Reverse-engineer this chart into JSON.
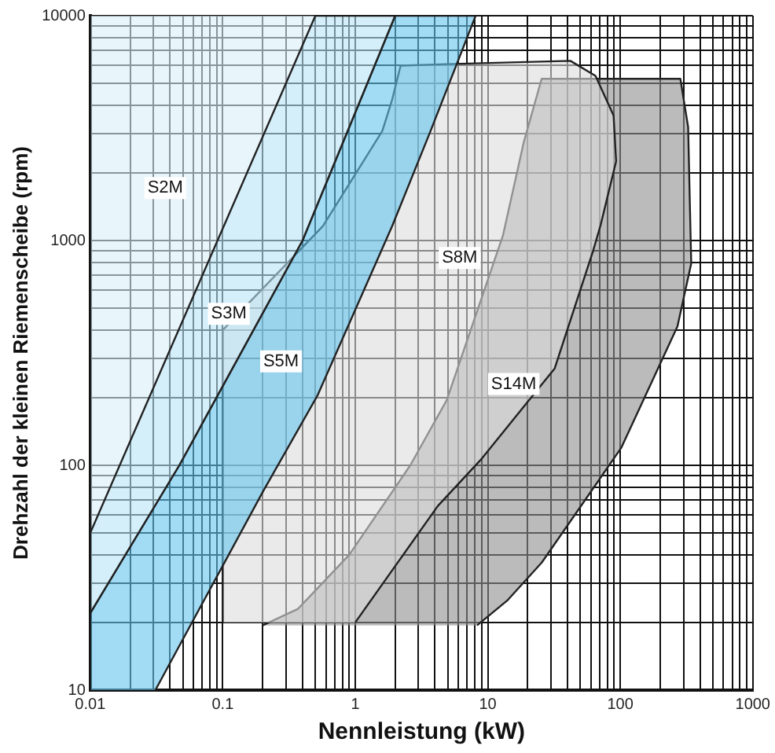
{
  "chart_data": {
    "type": "area",
    "xlabel": "Nennleistung (kW)",
    "ylabel": "Drehzahl der kleinen Riemenscheibe (rpm)",
    "log": "xy",
    "grid": true,
    "legend": false,
    "marker": "none",
    "xlim": [
      0.01,
      1000
    ],
    "ylim": [
      10,
      10000
    ],
    "xticks": [
      0.01,
      {
        "value": 0.02,
        "label": null
      },
      {
        "value": 0.03,
        "label": null
      },
      {
        "value": 0.04,
        "label": null
      },
      {
        "value": 0.05,
        "label": null
      },
      {
        "value": 0.06,
        "label": null
      },
      {
        "value": 0.07,
        "label": null
      },
      {
        "value": 0.08,
        "label": null
      },
      {
        "value": 0.09,
        "label": null
      },
      0.1,
      {
        "value": 0.2,
        "label": null
      },
      {
        "value": 0.3,
        "label": null
      },
      {
        "value": 0.4,
        "label": null
      },
      {
        "value": 0.5,
        "label": null
      },
      {
        "value": 0.6,
        "label": null
      },
      {
        "value": 0.7,
        "label": null
      },
      {
        "value": 0.8,
        "label": null
      },
      {
        "value": 0.9,
        "label": null
      },
      1,
      {
        "value": 2,
        "label": null
      },
      {
        "value": 3,
        "label": null
      },
      {
        "value": 4,
        "label": null
      },
      {
        "value": 5,
        "label": null
      },
      {
        "value": 6,
        "label": null
      },
      {
        "value": 7,
        "label": null
      },
      {
        "value": 8,
        "label": null
      },
      {
        "value": 9,
        "label": null
      },
      10,
      {
        "value": 20,
        "label": null
      },
      {
        "value": 30,
        "label": null
      },
      {
        "value": 40,
        "label": null
      },
      {
        "value": 50,
        "label": null
      },
      {
        "value": 60,
        "label": null
      },
      {
        "value": 70,
        "label": null
      },
      {
        "value": 80,
        "label": null
      },
      {
        "value": 90,
        "label": null
      },
      100,
      {
        "value": 200,
        "label": null
      },
      {
        "value": 300,
        "label": null
      },
      {
        "value": 400,
        "label": null
      },
      {
        "value": 500,
        "label": null
      },
      {
        "value": 600,
        "label": null
      },
      {
        "value": 700,
        "label": null
      },
      {
        "value": 800,
        "label": null
      },
      {
        "value": 900,
        "label": null
      },
      1000
    ],
    "yticks": [
      10,
      {
        "value": 20,
        "label": null
      },
      {
        "value": 30,
        "label": null
      },
      {
        "value": 40,
        "label": null
      },
      {
        "value": 50,
        "label": null
      },
      {
        "value": 60,
        "label": null
      },
      {
        "value": 70,
        "label": null
      },
      {
        "value": 80,
        "label": null
      },
      {
        "value": 90,
        "label": null
      },
      100,
      {
        "value": 200,
        "label": null
      },
      {
        "value": 300,
        "label": null
      },
      {
        "value": 400,
        "label": null
      },
      {
        "value": 500,
        "label": null
      },
      {
        "value": 600,
        "label": null
      },
      {
        "value": 700,
        "label": null
      },
      {
        "value": 800,
        "label": null
      },
      {
        "value": 900,
        "label": null
      },
      1000,
      {
        "value": 2000,
        "label": null
      },
      {
        "value": 3000,
        "label": null
      },
      {
        "value": 4000,
        "label": null
      },
      {
        "value": 5000,
        "label": null
      },
      {
        "value": 6000,
        "label": null
      },
      {
        "value": 7000,
        "label": null
      },
      {
        "value": 8000,
        "label": null
      },
      {
        "value": 9000,
        "label": null
      },
      10000
    ],
    "series": [
      {
        "name": "S2M",
        "color": "#d8eff9",
        "x": [
          0.01,
          0.01,
          0.5
        ],
        "values": [
          10000,
          50,
          10000
        ]
      },
      {
        "name": "S3M",
        "color": "#b8e4f6",
        "x": [
          0.01,
          0.01,
          0.047,
          0.4,
          2,
          0.5
        ],
        "values": [
          50,
          22,
          100,
          1000,
          10000,
          10000
        ]
      },
      {
        "name": "S5M",
        "color": "#62c3ec",
        "x": [
          0.01,
          0.01,
          0.047,
          0.4,
          2,
          8.1,
          3.7,
          1.9,
          0.52,
          0.2,
          0.031
        ],
        "values": [
          10,
          22,
          100,
          1000,
          10000,
          10000,
          3070,
          1160,
          205,
          76,
          10
        ]
      },
      {
        "name": "S8M",
        "color": "#dcdcdc",
        "x": [
          0.1,
          0.1,
          0.57,
          1.6,
          1.9,
          2.2,
          5.4,
          42,
          65,
          89,
          93,
          71,
          62,
          32,
          9,
          4.2,
          1
        ],
        "values": [
          20,
          400,
          1160,
          3070,
          4240,
          6000,
          6100,
          6300,
          5400,
          3600,
          2250,
          1170,
          890,
          270,
          107,
          66,
          20
        ]
      },
      {
        "name": "S14M",
        "color": "#8e8e90",
        "x": [
          0.2,
          0.37,
          0.9,
          2.6,
          4.9,
          13,
          18.7,
          25.5,
          284,
          325,
          343,
          270,
          102,
          25.6,
          14,
          8.3
        ],
        "values": [
          19.4,
          23,
          40,
          100,
          195,
          1050,
          2740,
          5240,
          5240,
          3200,
          790,
          415,
          120,
          37,
          25,
          19.4
        ]
      }
    ]
  }
}
